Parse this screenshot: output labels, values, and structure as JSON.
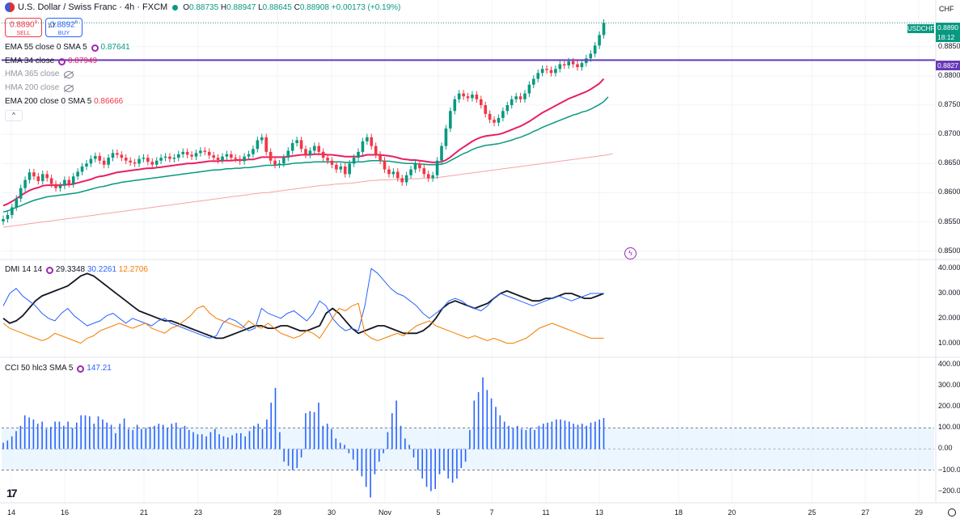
{
  "header": {
    "title": "U.S. Dollar / Swiss Franc · 4h · FXCM",
    "open_label": "O",
    "open": "0.88735",
    "high_label": "H",
    "high": "0.88947",
    "low_label": "L",
    "low": "0.88645",
    "close_label": "C",
    "close": "0.88908",
    "change": "+0.00173 (+0.19%)",
    "sell_price": "0.8890",
    "sell_price_small": "9",
    "sell_label": "SELL",
    "spread": "1.7",
    "buy_price": "0.8892",
    "buy_price_small": "6",
    "buy_label": "BUY"
  },
  "indicators": {
    "ema55": {
      "label": "EMA 55 close 0 SMA 5",
      "value": "0.87641",
      "color": "#089981"
    },
    "ema34": {
      "label": "EMA 34 close",
      "value": "0.87949",
      "color": "#e91e63"
    },
    "hma365": {
      "label": "HMA 365 close"
    },
    "hma200": {
      "label": "HMA 200 close"
    },
    "ema200": {
      "label": "EMA 200 close 0 SMA 5",
      "value": "0.86666",
      "color": "#f23645"
    },
    "dmi": {
      "label": "DMI 14 14",
      "adx": "29.3348",
      "plus": "30.2261",
      "minus": "12.2706"
    },
    "cci": {
      "label": "CCI 50 hlc3 SMA 5",
      "value": "147.21"
    }
  },
  "axis": {
    "currency": "CHF",
    "symbol": "USDCHF",
    "last_price": "0.8890",
    "countdown": "18:12",
    "level_price": "0.8827",
    "price_ticks": [
      "0.8850",
      "0.8800",
      "0.8750",
      "0.8700",
      "0.8650",
      "0.8600",
      "0.8550",
      "0.8500"
    ],
    "dmi_ticks": [
      "40.000",
      "30.000",
      "20.000",
      "10.000"
    ],
    "cci_ticks": [
      "400.00",
      "300.00",
      "200.00",
      "100.00",
      "0.00",
      "−100.00",
      "−200.00"
    ],
    "x_ticks": [
      "14",
      "16",
      "21",
      "23",
      "28",
      "30",
      "Nov",
      "5",
      "7",
      "11",
      "13",
      "18",
      "20",
      "25",
      "27",
      "29"
    ]
  },
  "colors": {
    "up": "#089981",
    "down": "#f23645",
    "level": "#673ab7",
    "dmi_adx": "#131722",
    "dmi_plus": "#2962ff",
    "dmi_minus": "#f57c00",
    "cci": "#2962ff"
  },
  "chart_data": [
    {
      "type": "candlestick",
      "title": "U.S. Dollar / Swiss Franc · 4h · FXCM",
      "ylim": [
        0.849,
        0.8905
      ],
      "y_ticks": [
        0.85,
        0.855,
        0.86,
        0.865,
        0.87,
        0.875,
        0.88,
        0.885
      ],
      "horizontal_level": 0.8827,
      "last_close": 0.88908,
      "closes": [
        0.8555,
        0.8562,
        0.8575,
        0.859,
        0.8608,
        0.8622,
        0.8635,
        0.8628,
        0.862,
        0.8632,
        0.8625,
        0.8615,
        0.8608,
        0.8612,
        0.8622,
        0.8615,
        0.8628,
        0.8636,
        0.8645,
        0.865,
        0.8658,
        0.8663,
        0.8655,
        0.8648,
        0.866,
        0.8668,
        0.8665,
        0.866,
        0.8655,
        0.8652,
        0.865,
        0.8658,
        0.866,
        0.8653,
        0.8648,
        0.8655,
        0.866,
        0.8662,
        0.8658,
        0.866,
        0.8666,
        0.867,
        0.8665,
        0.8662,
        0.8668,
        0.8672,
        0.867,
        0.8664,
        0.866,
        0.8656,
        0.8662,
        0.8666,
        0.866,
        0.8658,
        0.8654,
        0.8662,
        0.8666,
        0.8675,
        0.869,
        0.8695,
        0.867,
        0.8655,
        0.8648,
        0.865,
        0.866,
        0.8672,
        0.8685,
        0.869,
        0.8675,
        0.8665,
        0.8672,
        0.868,
        0.867,
        0.866,
        0.8655,
        0.8648,
        0.864,
        0.8645,
        0.8632,
        0.865,
        0.866,
        0.867,
        0.8688,
        0.8695,
        0.868,
        0.8665,
        0.8655,
        0.864,
        0.8632,
        0.8636,
        0.8625,
        0.8618,
        0.863,
        0.864,
        0.865,
        0.8642,
        0.8632,
        0.8625,
        0.863,
        0.8655,
        0.868,
        0.871,
        0.874,
        0.876,
        0.877,
        0.8765,
        0.8762,
        0.8768,
        0.876,
        0.875,
        0.8735,
        0.8725,
        0.872,
        0.8728,
        0.874,
        0.875,
        0.876,
        0.8765,
        0.876,
        0.877,
        0.8785,
        0.8795,
        0.8805,
        0.8812,
        0.881,
        0.8805,
        0.8812,
        0.882,
        0.8818,
        0.8825,
        0.882,
        0.8815,
        0.8822,
        0.883,
        0.8838,
        0.8852,
        0.887,
        0.8891
      ],
      "ema34": [
        0.8578,
        0.8581,
        0.8585,
        0.859,
        0.8595,
        0.86,
        0.8604,
        0.8607,
        0.8609,
        0.8612,
        0.8613,
        0.8613,
        0.8613,
        0.8613,
        0.8614,
        0.8614,
        0.8615,
        0.8617,
        0.8619,
        0.8621,
        0.8623,
        0.8626,
        0.8628,
        0.8629,
        0.8631,
        0.8633,
        0.8635,
        0.8636,
        0.8637,
        0.8638,
        0.8639,
        0.864,
        0.8641,
        0.8642,
        0.8642,
        0.8643,
        0.8644,
        0.8645,
        0.8646,
        0.8647,
        0.8648,
        0.8649,
        0.865,
        0.865,
        0.8651,
        0.8652,
        0.8653,
        0.8654,
        0.8654,
        0.8654,
        0.8655,
        0.8655,
        0.8655,
        0.8656,
        0.8656,
        0.8656,
        0.8657,
        0.8657,
        0.8659,
        0.8661,
        0.8661,
        0.8661,
        0.8661,
        0.8661,
        0.8661,
        0.8662,
        0.8663,
        0.8664,
        0.8665,
        0.8665,
        0.8665,
        0.8666,
        0.8666,
        0.8666,
        0.8665,
        0.8665,
        0.8664,
        0.8663,
        0.8662,
        0.8662,
        0.8662,
        0.8662,
        0.8663,
        0.8665,
        0.8665,
        0.8665,
        0.8665,
        0.8664,
        0.8663,
        0.8662,
        0.866,
        0.8658,
        0.8657,
        0.8656,
        0.8656,
        0.8655,
        0.8654,
        0.8653,
        0.8652,
        0.8652,
        0.8653,
        0.8656,
        0.8661,
        0.8667,
        0.8673,
        0.8678,
        0.8683,
        0.8688,
        0.8692,
        0.8695,
        0.8697,
        0.8698,
        0.8699,
        0.87,
        0.8702,
        0.8705,
        0.8708,
        0.8711,
        0.8714,
        0.8718,
        0.8722,
        0.8727,
        0.8732,
        0.8737,
        0.8741,
        0.8745,
        0.8749,
        0.8753,
        0.8757,
        0.8761,
        0.8764,
        0.8767,
        0.877,
        0.8773,
        0.8777,
        0.8782,
        0.8787,
        0.8795
      ],
      "ema55": [
        0.8567,
        0.8569,
        0.8572,
        0.8575,
        0.8578,
        0.8581,
        0.8584,
        0.8587,
        0.8589,
        0.8591,
        0.8593,
        0.8594,
        0.8595,
        0.8596,
        0.8597,
        0.8598,
        0.8599,
        0.86,
        0.8602,
        0.8604,
        0.8606,
        0.8608,
        0.861,
        0.8611,
        0.8613,
        0.8615,
        0.8616,
        0.8618,
        0.8619,
        0.862,
        0.8621,
        0.8622,
        0.8623,
        0.8624,
        0.8625,
        0.8626,
        0.8627,
        0.8628,
        0.8629,
        0.863,
        0.8631,
        0.8632,
        0.8633,
        0.8634,
        0.8635,
        0.8636,
        0.8637,
        0.8638,
        0.8639,
        0.8639,
        0.864,
        0.8641,
        0.8641,
        0.8642,
        0.8642,
        0.8643,
        0.8643,
        0.8644,
        0.8645,
        0.8646,
        0.8647,
        0.8647,
        0.8647,
        0.8648,
        0.8648,
        0.8649,
        0.865,
        0.8651,
        0.8651,
        0.8652,
        0.8652,
        0.8653,
        0.8653,
        0.8653,
        0.8653,
        0.8653,
        0.8653,
        0.8653,
        0.8652,
        0.8652,
        0.8652,
        0.8653,
        0.8653,
        0.8654,
        0.8655,
        0.8655,
        0.8655,
        0.8654,
        0.8654,
        0.8653,
        0.8652,
        0.8651,
        0.865,
        0.865,
        0.865,
        0.8649,
        0.8649,
        0.8648,
        0.8648,
        0.8648,
        0.8649,
        0.8651,
        0.8655,
        0.8659,
        0.8663,
        0.8667,
        0.867,
        0.8674,
        0.8677,
        0.8679,
        0.8681,
        0.8682,
        0.8683,
        0.8684,
        0.8686,
        0.8688,
        0.869,
        0.8693,
        0.8695,
        0.8698,
        0.8701,
        0.8705,
        0.8708,
        0.8712,
        0.8715,
        0.8718,
        0.8721,
        0.8724,
        0.8727,
        0.873,
        0.8733,
        0.8735,
        0.8738,
        0.874,
        0.8743,
        0.8747,
        0.8751,
        0.8756,
        0.8764
      ],
      "ema200": [
        0.8541,
        0.8542,
        0.8543,
        0.8544,
        0.8545,
        0.8546,
        0.8547,
        0.8548,
        0.8549,
        0.855,
        0.8551,
        0.8552,
        0.8553,
        0.8554,
        0.8555,
        0.8556,
        0.8557,
        0.8558,
        0.8559,
        0.856,
        0.8561,
        0.8562,
        0.8563,
        0.8564,
        0.8565,
        0.8566,
        0.8567,
        0.8568,
        0.8569,
        0.857,
        0.8571,
        0.8572,
        0.8573,
        0.8574,
        0.8575,
        0.8576,
        0.8577,
        0.8578,
        0.8579,
        0.858,
        0.8581,
        0.8582,
        0.8583,
        0.8584,
        0.8585,
        0.8586,
        0.8587,
        0.8588,
        0.8589,
        0.859,
        0.8591,
        0.8592,
        0.8593,
        0.8594,
        0.8595,
        0.8596,
        0.8597,
        0.8598,
        0.8599,
        0.86,
        0.86,
        0.8601,
        0.8602,
        0.8603,
        0.8604,
        0.8605,
        0.8606,
        0.8607,
        0.8608,
        0.8609,
        0.861,
        0.8611,
        0.8612,
        0.8613,
        0.8613,
        0.8614,
        0.8615,
        0.8615,
        0.8616,
        0.8616,
        0.8617,
        0.8618,
        0.8619,
        0.862,
        0.8621,
        0.8621,
        0.8622,
        0.8622,
        0.8622,
        0.8623,
        0.8623,
        0.8623,
        0.8623,
        0.8624,
        0.8624,
        0.8624,
        0.8625,
        0.8625,
        0.8625,
        0.8626,
        0.8627,
        0.8628,
        0.8629,
        0.863,
        0.8631,
        0.8632,
        0.8633,
        0.8634,
        0.8635,
        0.8636,
        0.8637,
        0.8638,
        0.8639,
        0.864,
        0.8641,
        0.8642,
        0.8643,
        0.8644,
        0.8645,
        0.8646,
        0.8647,
        0.8648,
        0.8649,
        0.865,
        0.8651,
        0.8652,
        0.8653,
        0.8654,
        0.8655,
        0.8656,
        0.8657,
        0.8658,
        0.8659,
        0.866,
        0.8661,
        0.8662,
        0.8663,
        0.8664,
        0.8665,
        0.8667
      ]
    },
    {
      "type": "line",
      "title": "DMI 14 14",
      "ylim": [
        5,
        42
      ],
      "y_ticks": [
        10,
        20,
        30,
        40
      ],
      "series": [
        {
          "name": "ADX",
          "values": [
            20,
            18,
            19,
            21,
            24,
            27,
            29,
            30,
            31,
            32,
            33,
            35,
            37,
            38,
            37,
            35,
            33,
            31,
            29,
            27,
            25,
            23,
            22,
            21,
            20,
            19,
            19,
            18,
            17,
            16,
            15,
            14,
            13,
            12,
            12,
            13,
            14,
            15,
            16,
            17,
            17,
            16,
            16,
            17,
            17,
            16,
            15,
            15,
            16,
            17,
            22,
            24,
            22,
            19,
            16,
            14,
            15,
            16,
            17,
            17,
            16,
            15,
            14,
            14,
            14,
            15,
            17,
            20,
            24,
            26,
            27,
            26,
            25,
            24,
            25,
            26,
            28,
            30,
            31,
            30,
            29,
            28,
            27,
            27,
            28,
            28,
            29,
            30,
            30,
            29,
            28,
            28,
            29,
            30
          ]
        },
        {
          "name": "+DI",
          "values": [
            25,
            30,
            32,
            29,
            27,
            25,
            22,
            20,
            19,
            22,
            24,
            21,
            19,
            17,
            18,
            19,
            21,
            22,
            20,
            18,
            20,
            19,
            18,
            17,
            19,
            20,
            18,
            17,
            16,
            15,
            14,
            13,
            12,
            13,
            18,
            20,
            19,
            17,
            15,
            16,
            24,
            22,
            21,
            20,
            22,
            23,
            21,
            19,
            22,
            27,
            25,
            20,
            17,
            15,
            16,
            15,
            25,
            40,
            38,
            35,
            32,
            30,
            29,
            27,
            25,
            22,
            20,
            22,
            24,
            27,
            28,
            27,
            25,
            24,
            23,
            25,
            28,
            30,
            29,
            28,
            27,
            26,
            25,
            26,
            27,
            28,
            29,
            28,
            27,
            28,
            29,
            30,
            30,
            30
          ]
        },
        {
          "name": "-DI",
          "values": [
            18,
            16,
            15,
            14,
            13,
            12,
            11,
            12,
            14,
            13,
            12,
            11,
            10,
            12,
            13,
            15,
            16,
            17,
            18,
            17,
            16,
            17,
            18,
            16,
            15,
            14,
            16,
            17,
            19,
            21,
            24,
            25,
            22,
            20,
            19,
            18,
            17,
            16,
            19,
            17,
            16,
            18,
            16,
            14,
            13,
            12,
            13,
            15,
            14,
            12,
            16,
            20,
            24,
            23,
            25,
            26,
            14,
            12,
            11,
            12,
            13,
            14,
            13,
            15,
            17,
            18,
            19,
            17,
            16,
            15,
            14,
            13,
            12,
            13,
            12,
            11,
            12,
            11,
            10,
            10,
            11,
            12,
            14,
            16,
            17,
            18,
            17,
            16,
            15,
            14,
            13,
            12,
            12,
            12
          ]
        }
      ]
    },
    {
      "type": "bar",
      "title": "CCI 50 hlc3 SMA 5",
      "ylim": [
        -240,
        420
      ],
      "y_ticks": [
        400,
        300,
        200,
        100,
        0,
        -100,
        -200
      ],
      "bands": [
        100,
        -100
      ],
      "values": [
        30,
        40,
        60,
        85,
        110,
        160,
        150,
        140,
        120,
        130,
        95,
        105,
        130,
        130,
        110,
        130,
        100,
        125,
        160,
        160,
        155,
        120,
        155,
        140,
        125,
        115,
        75,
        120,
        145,
        95,
        90,
        115,
        95,
        100,
        105,
        110,
        120,
        115,
        100,
        120,
        125,
        100,
        110,
        90,
        80,
        70,
        70,
        60,
        80,
        95,
        70,
        60,
        55,
        65,
        75,
        75,
        60,
        85,
        110,
        120,
        95,
        140,
        220,
        290,
        80,
        -60,
        -80,
        -100,
        -90,
        -40,
        170,
        180,
        175,
        220,
        110,
        120,
        95,
        50,
        30,
        20,
        -20,
        -50,
        -100,
        -130,
        -180,
        -230,
        -120,
        -60,
        -20,
        80,
        170,
        230,
        110,
        50,
        20,
        -40,
        -100,
        -140,
        -180,
        -200,
        -190,
        -120,
        -100,
        -140,
        -160,
        -140,
        -90,
        -60,
        90,
        230,
        270,
        340,
        280,
        240,
        200,
        160,
        130,
        110,
        100,
        110,
        95,
        90,
        100,
        90,
        110,
        120,
        125,
        130,
        140,
        140,
        135,
        130,
        120,
        115,
        120,
        110,
        125,
        130,
        140,
        147
      ]
    }
  ]
}
